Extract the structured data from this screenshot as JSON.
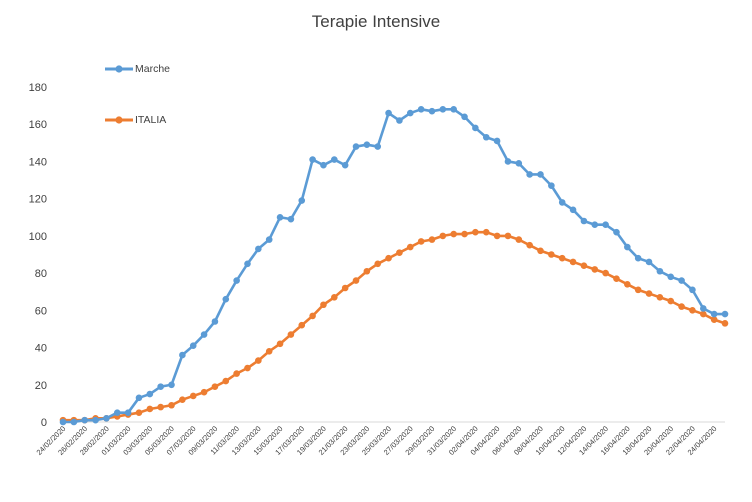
{
  "chart_data": {
    "type": "line",
    "title": "Terapie Intensive",
    "xlabel": "",
    "ylabel": "",
    "ylim": [
      0,
      180
    ],
    "yticks": [
      0,
      20,
      40,
      60,
      80,
      100,
      120,
      140,
      160,
      180
    ],
    "grid": false,
    "legend": "top-left",
    "x": [
      "24/02/2020",
      "25/02/2020",
      "26/02/2020",
      "27/02/2020",
      "28/02/2020",
      "29/02/2020",
      "01/03/2020",
      "02/03/2020",
      "03/03/2020",
      "04/03/2020",
      "05/03/2020",
      "06/03/2020",
      "07/03/2020",
      "08/03/2020",
      "09/03/2020",
      "10/03/2020",
      "11/03/2020",
      "12/03/2020",
      "13/03/2020",
      "14/03/2020",
      "15/03/2020",
      "16/03/2020",
      "17/03/2020",
      "18/03/2020",
      "19/03/2020",
      "20/03/2020",
      "21/03/2020",
      "22/03/2020",
      "23/03/2020",
      "24/03/2020",
      "25/03/2020",
      "26/03/2020",
      "27/03/2020",
      "28/03/2020",
      "29/03/2020",
      "30/03/2020",
      "31/03/2020",
      "01/04/2020",
      "02/04/2020",
      "03/04/2020",
      "04/04/2020",
      "05/04/2020",
      "06/04/2020",
      "07/04/2020",
      "08/04/2020",
      "09/04/2020",
      "10/04/2020",
      "11/04/2020",
      "12/04/2020",
      "13/04/2020",
      "14/04/2020",
      "15/04/2020",
      "16/04/2020",
      "17/04/2020",
      "18/04/2020",
      "19/04/2020",
      "20/04/2020",
      "21/04/2020",
      "22/04/2020",
      "23/04/2020",
      "24/04/2020",
      "25/04/2020"
    ],
    "xtick_labels": [
      "24/02/2020",
      "26/02/2020",
      "28/02/2020",
      "01/03/2020",
      "03/03/2020",
      "05/03/2020",
      "07/03/2020",
      "09/03/2020",
      "11/03/2020",
      "13/03/2020",
      "15/03/2020",
      "17/03/2020",
      "19/03/2020",
      "21/03/2020",
      "23/03/2020",
      "25/03/2020",
      "27/03/2020",
      "29/03/2020",
      "31/03/2020",
      "02/04/2020",
      "04/04/2020",
      "06/04/2020",
      "08/04/2020",
      "10/04/2020",
      "12/04/2020",
      "14/04/2020",
      "16/04/2020",
      "18/04/2020",
      "20/04/2020",
      "22/04/2020",
      "24/04/2020"
    ],
    "series": [
      {
        "name": "Marche",
        "color": "#5b9bd5",
        "values": [
          0,
          0,
          1,
          1,
          2,
          5,
          5,
          13,
          15,
          19,
          20,
          36,
          41,
          47,
          54,
          66,
          76,
          85,
          93,
          98,
          110,
          109,
          119,
          141,
          138,
          141,
          138,
          148,
          149,
          148,
          166,
          162,
          166,
          168,
          167,
          168,
          168,
          164,
          158,
          153,
          151,
          140,
          139,
          133,
          133,
          127,
          118,
          114,
          108,
          106,
          106,
          102,
          94,
          88,
          86,
          81,
          78,
          76,
          71,
          61,
          58,
          58
        ]
      },
      {
        "name": "ITALIA",
        "color": "#ed7d31",
        "values": [
          1,
          1,
          1,
          2,
          2,
          3,
          4,
          5,
          7,
          8,
          9,
          12,
          14,
          16,
          19,
          22,
          26,
          29,
          33,
          38,
          42,
          47,
          52,
          57,
          63,
          67,
          72,
          76,
          81,
          85,
          88,
          91,
          94,
          97,
          98,
          100,
          101,
          101,
          102,
          102,
          100,
          100,
          98,
          95,
          92,
          90,
          88,
          86,
          84,
          82,
          80,
          77,
          74,
          71,
          69,
          67,
          65,
          62,
          60,
          58,
          55,
          53
        ]
      }
    ]
  }
}
